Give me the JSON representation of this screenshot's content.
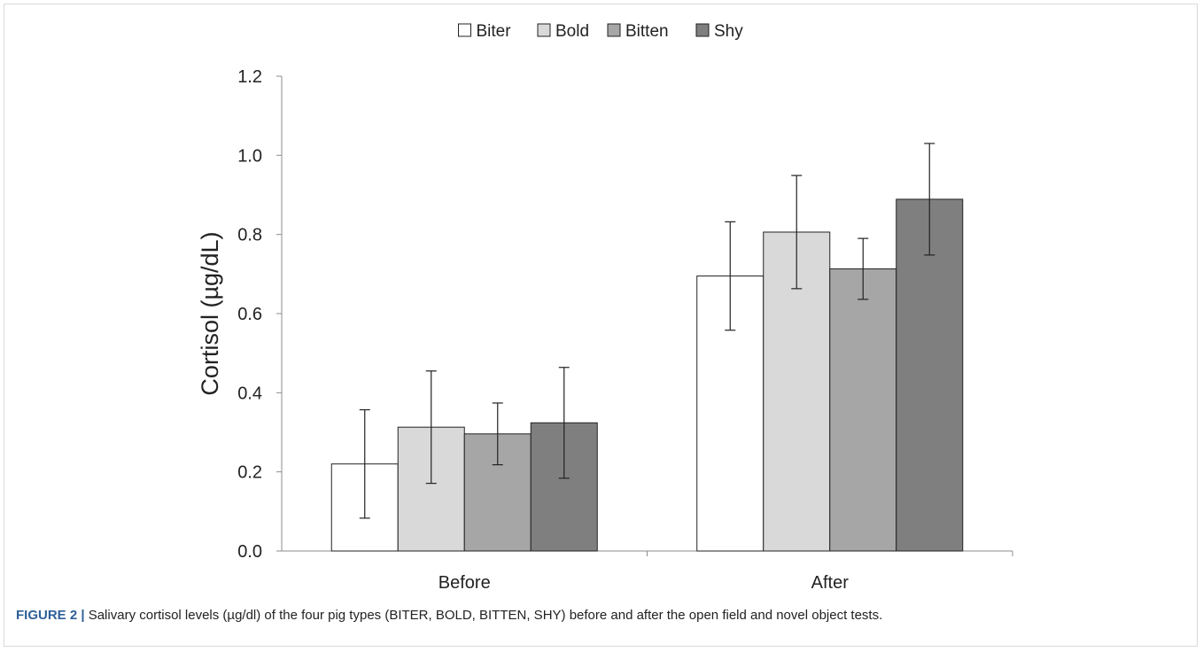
{
  "chart_data": {
    "type": "bar",
    "categories": [
      "Before",
      "After"
    ],
    "series": [
      {
        "name": "Biter",
        "color": "#ffffff",
        "values": [
          0.22,
          0.695
        ],
        "errors": [
          0.137,
          0.137
        ]
      },
      {
        "name": "Bold",
        "color": "#d9d9d9",
        "values": [
          0.313,
          0.806
        ],
        "errors": [
          0.142,
          0.143
        ]
      },
      {
        "name": "Bitten",
        "color": "#a6a6a6",
        "values": [
          0.296,
          0.713
        ],
        "errors": [
          0.078,
          0.077
        ]
      },
      {
        "name": "Shy",
        "color": "#7f7f7f",
        "values": [
          0.324,
          0.889
        ],
        "errors": [
          0.14,
          0.141
        ]
      }
    ],
    "ylabel": "Cortisol (µg/dL)",
    "xlabel": "",
    "ylim": [
      0,
      1.2
    ],
    "yticks": [
      "0.0",
      "0.2",
      "0.4",
      "0.6",
      "0.8",
      "1.0",
      "1.2"
    ],
    "grid": false,
    "legend_position": "top-center"
  },
  "caption": {
    "label": "FIGURE 2 |",
    "text": " Salivary cortisol levels (µg/dl) of the four pig types (BITER, BOLD, BITTEN, SHY) before and after the open field and novel object tests."
  }
}
